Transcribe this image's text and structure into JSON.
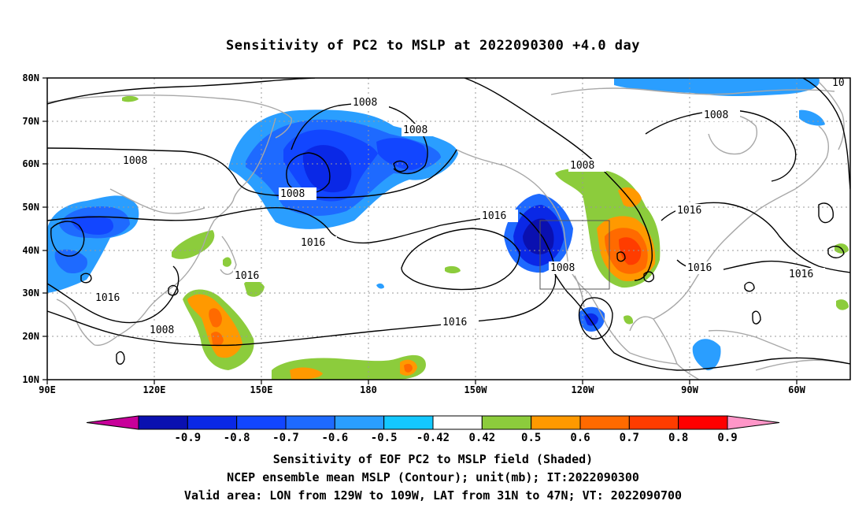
{
  "title": "Sensitivity of PC2 to MSLP at 2022090300 +4.0 day",
  "axes": {
    "lat_labels": [
      "80N",
      "70N",
      "60N",
      "50N",
      "40N",
      "30N",
      "20N",
      "10N"
    ],
    "lon_labels": [
      "90E",
      "120E",
      "150E",
      "180",
      "150W",
      "120W",
      "90W",
      "60W"
    ]
  },
  "contour_labels": [
    "1008",
    "1008",
    "1008",
    "1008",
    "1008",
    "1008",
    "1008",
    "10",
    "1016",
    "1016",
    "1016",
    "1016",
    "1016",
    "1016",
    "1016"
  ],
  "colorbar": {
    "labels": [
      "-0.9",
      "-0.8",
      "-0.7",
      "-0.6",
      "-0.5",
      "-0.42",
      "0.42",
      "0.5",
      "0.6",
      "0.7",
      "0.8",
      "0.9"
    ],
    "colors": [
      "#c8009a",
      "#0a10b0",
      "#0a28e6",
      "#1246ff",
      "#1e6aff",
      "#2a9eff",
      "#14c8ff",
      "#ffffff",
      "#8ccc3c",
      "#ff9900",
      "#ff6a00",
      "#ff3c00",
      "#ff0000",
      "#ff96c8"
    ]
  },
  "region_box": {
    "lon_west": "129W",
    "lon_east": "109W",
    "lat_south": "31N",
    "lat_north": "47N"
  },
  "captions": {
    "line1": "Sensitivity of EOF PC2 to MSLP field (Shaded)",
    "line2": "NCEP ensemble mean MSLP (Contour); unit(mb); IT:2022090300",
    "line3": "Valid area: LON from 129W to 109W, LAT from 31N to 47N; VT: 2022090700"
  }
}
